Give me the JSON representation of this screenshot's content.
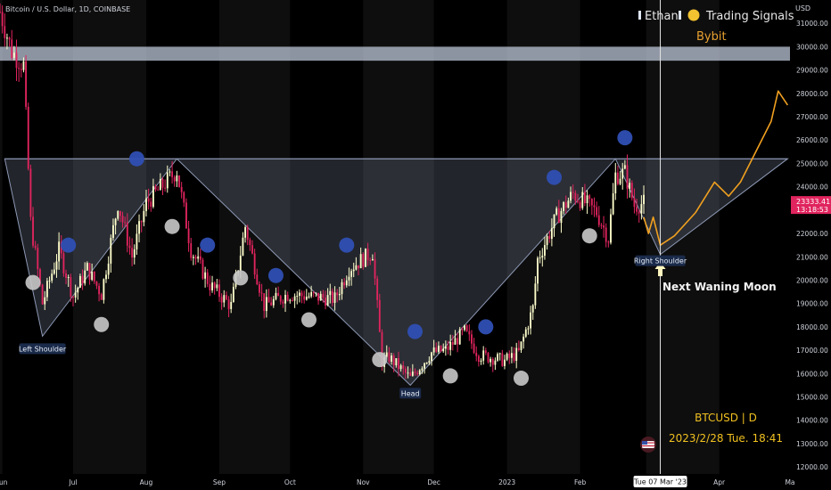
{
  "header": {
    "symbol_title": "Bitcoin / U.S. Dollar, 1D, COINBASE",
    "watermark_name": "Ethan",
    "watermark_brand": "Trading Signals",
    "exchange": "Bybit"
  },
  "overlay": {
    "ticker_line": "BTCUSD | D",
    "date_line": "2023/2/28 Tue. 18:41",
    "next_moon_label": "Next Waning Moon"
  },
  "price_scale": {
    "currency": "USD",
    "ticks": [
      "31000.00",
      "30000.00",
      "29000.00",
      "28000.00",
      "27000.00",
      "26000.00",
      "25000.00",
      "24000.00",
      "23000.00",
      "22000.00",
      "21000.00",
      "20000.00",
      "19000.00",
      "18000.00",
      "17000.00",
      "16000.00",
      "15000.00",
      "14000.00",
      "13000.00",
      "12000.00"
    ],
    "last_price": "23333.41",
    "countdown": "13:18:53"
  },
  "time_scale": {
    "ticks": [
      "Jun",
      "Jul",
      "Aug",
      "Sep",
      "Oct",
      "Nov",
      "Dec",
      "2023",
      "Feb",
      "Apr",
      "Ma"
    ],
    "cursor_label": "Tue 07 Mar '23"
  },
  "pattern_labels": {
    "left_shoulder": "Left Shoulder",
    "head": "Head",
    "right_shoulder": "Right Shoulder"
  },
  "colors": {
    "background": "#000000",
    "up": "#ffffcc",
    "down": "#e0245e",
    "full_moon": "#c8c8c8",
    "new_moon": "#2f4fb3",
    "pattern_fill": "#9aa7c4",
    "projection": "#f0a020",
    "price_badge": "#e0245e",
    "label_bg": "#1a2a4a",
    "resistance_band": "#c9d3e6"
  },
  "chart_data": {
    "type": "candlestick",
    "title": "Bitcoin / U.S. Dollar, 1D, COINBASE",
    "ylabel": "USD",
    "ylim": [
      11700,
      32000
    ],
    "x_range": [
      "2022-05-31",
      "2023-05-01"
    ],
    "close_path": [
      [
        "2022-05-31",
        31500
      ],
      [
        "2022-06-05",
        29800
      ],
      [
        "2022-06-10",
        29200
      ],
      [
        "2022-06-13",
        22500
      ],
      [
        "2022-06-18",
        19000
      ],
      [
        "2022-06-25",
        21300
      ],
      [
        "2022-07-01",
        19300
      ],
      [
        "2022-07-07",
        20500
      ],
      [
        "2022-07-13",
        19400
      ],
      [
        "2022-07-20",
        23300
      ],
      [
        "2022-07-26",
        21000
      ],
      [
        "2022-08-01",
        23300
      ],
      [
        "2022-08-14",
        24700
      ],
      [
        "2022-08-20",
        21300
      ],
      [
        "2022-08-28",
        19800
      ],
      [
        "2022-09-06",
        18900
      ],
      [
        "2022-09-12",
        22300
      ],
      [
        "2022-09-20",
        18900
      ],
      [
        "2022-09-30",
        19400
      ],
      [
        "2022-10-10",
        19300
      ],
      [
        "2022-10-20",
        19200
      ],
      [
        "2022-10-26",
        20500
      ],
      [
        "2022-11-05",
        21200
      ],
      [
        "2022-11-09",
        16500
      ],
      [
        "2022-11-12",
        16700
      ],
      [
        "2022-11-21",
        15800
      ],
      [
        "2022-11-30",
        16900
      ],
      [
        "2022-12-06",
        17000
      ],
      [
        "2022-12-14",
        17800
      ],
      [
        "2022-12-20",
        16800
      ],
      [
        "2022-12-31",
        16550
      ],
      [
        "2023-01-06",
        16900
      ],
      [
        "2023-01-12",
        18800
      ],
      [
        "2023-01-14",
        20900
      ],
      [
        "2023-01-22",
        22700
      ],
      [
        "2023-01-29",
        23700
      ],
      [
        "2023-02-02",
        23400
      ],
      [
        "2023-02-08",
        22900
      ],
      [
        "2023-02-13",
        21800
      ],
      [
        "2023-02-16",
        24500
      ],
      [
        "2023-02-20",
        24600
      ],
      [
        "2023-02-24",
        23200
      ],
      [
        "2023-02-28",
        23300
      ]
    ],
    "resistance_band": [
      29400,
      30000
    ],
    "neckline": 25200,
    "pattern_points": [
      {
        "label": "Left Shoulder",
        "date": "2022-06-18",
        "value": 17600
      },
      {
        "label": "Head",
        "date": "2022-11-21",
        "value": 15500
      },
      {
        "label": "Right Shoulder",
        "date": "2023-03-07",
        "value": 21100
      }
    ],
    "projection": [
      [
        "2023-02-28",
        22700
      ],
      [
        "2023-03-02",
        22000
      ],
      [
        "2023-03-04",
        22700
      ],
      [
        "2023-03-07",
        21500
      ],
      [
        "2023-03-13",
        21900
      ],
      [
        "2023-03-22",
        22900
      ],
      [
        "2023-03-30",
        24200
      ],
      [
        "2023-04-05",
        23600
      ],
      [
        "2023-04-10",
        24200
      ],
      [
        "2023-04-17",
        25600
      ],
      [
        "2023-04-23",
        26800
      ],
      [
        "2023-04-26",
        28100
      ],
      [
        "2023-04-30",
        27500
      ]
    ],
    "full_moons": [
      [
        "2022-06-14",
        19900
      ],
      [
        "2022-07-13",
        18100
      ],
      [
        "2022-08-12",
        22300
      ],
      [
        "2022-09-10",
        20100
      ],
      [
        "2022-10-09",
        18300
      ],
      [
        "2022-11-08",
        16600
      ],
      [
        "2022-12-08",
        15900
      ],
      [
        "2023-01-07",
        15800
      ],
      [
        "2023-02-05",
        21900
      ]
    ],
    "new_moons": [
      [
        "2022-06-29",
        21500
      ],
      [
        "2022-07-28",
        25200
      ],
      [
        "2022-08-27",
        21500
      ],
      [
        "2022-09-25",
        20200
      ],
      [
        "2022-10-25",
        21500
      ],
      [
        "2022-11-23",
        17800
      ],
      [
        "2022-12-23",
        18000
      ],
      [
        "2023-01-21",
        24400
      ],
      [
        "2023-02-20",
        26100
      ]
    ],
    "cursor_date": "2023-03-07"
  }
}
